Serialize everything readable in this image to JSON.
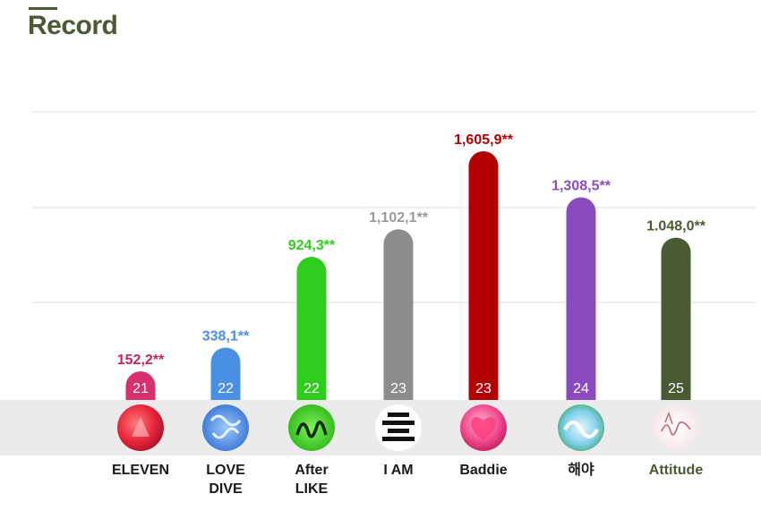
{
  "title": "Record",
  "chart_data": {
    "type": "bar",
    "title": "Record",
    "categories": [
      "ELEVEN",
      "LOVE DIVE",
      "After LIKE",
      "I AM",
      "Baddie",
      "해야",
      "Attitude"
    ],
    "category_lines": [
      [
        "ELEVEN"
      ],
      [
        "LOVE",
        "DIVE"
      ],
      [
        "After",
        "LIKE"
      ],
      [
        "I AM"
      ],
      [
        "Baddie"
      ],
      [
        "해야"
      ],
      [
        "Attitude"
      ]
    ],
    "values": [
      152.2,
      338.1,
      924.3,
      1102.1,
      1605.9,
      1308.5,
      1048.0
    ],
    "value_labels": [
      "152,2**",
      "338,1**",
      "924,3**",
      "1,102,1**",
      "1,605,9**",
      "1,308,5**",
      "1.048,0**"
    ],
    "bar_numbers": [
      "21",
      "22",
      "22",
      "23",
      "23",
      "24",
      "25"
    ],
    "colors": [
      "#d6306e",
      "#4a90e2",
      "#2fce1e",
      "#8c8c8c",
      "#b30000",
      "#8a4bbf",
      "#4a5a33"
    ],
    "label_colors": [
      "#c8245e",
      "#4a90e2",
      "#2fce1e",
      "#999999",
      "#b30000",
      "#8a4bbf",
      "#4a5a33"
    ],
    "cover_icons": [
      "eleven-cover-icon",
      "love-dive-cover-icon",
      "after-like-cover-icon",
      "i-am-cover-icon",
      "baddie-cover-icon",
      "haeya-cover-icon",
      "attitude-cover-icon"
    ],
    "grid": true,
    "ylim": [
      0,
      2000
    ],
    "xlabel": "",
    "ylabel": ""
  }
}
